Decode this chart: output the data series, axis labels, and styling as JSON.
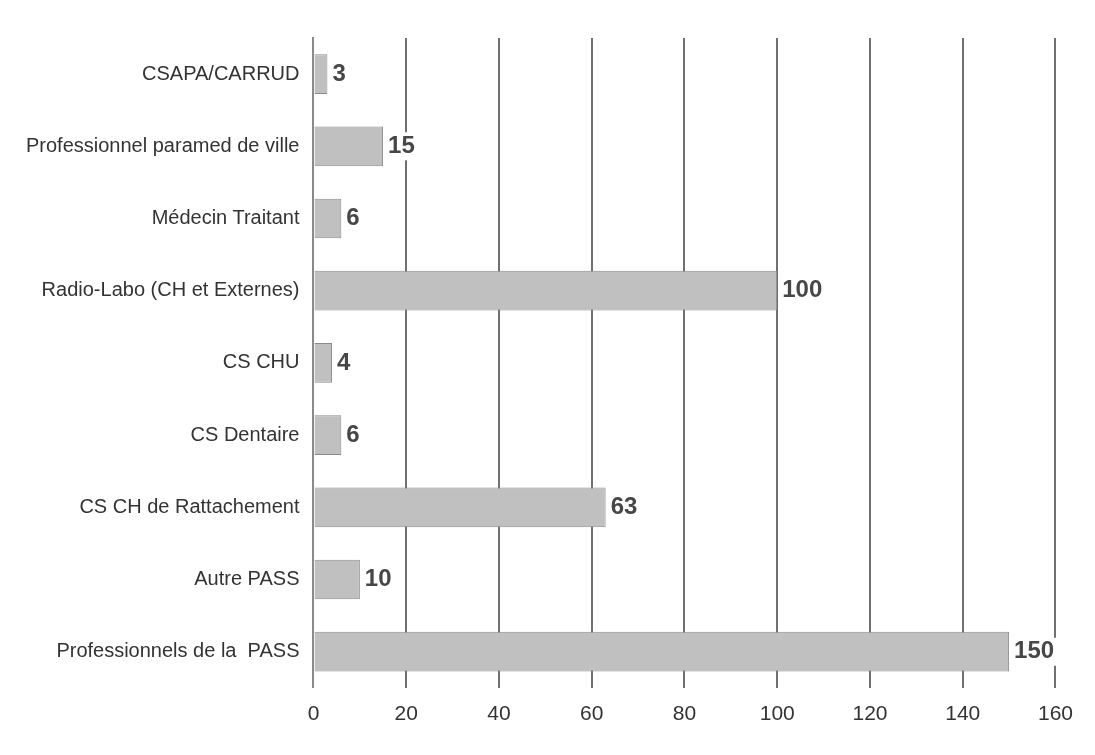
{
  "chart_data": {
    "type": "bar",
    "orientation": "horizontal",
    "categories": [
      "CSAPA/CARRUD",
      "Professionnel paramed de ville",
      "Médecin Traitant",
      "Radio-Labo (CH et Externes)",
      "CS CHU",
      "CS Dentaire",
      "CS CH de Rattachement",
      "Autre PASS",
      "Professionnels de la  PASS"
    ],
    "values": [
      3,
      15,
      6,
      100,
      4,
      6,
      63,
      10,
      150
    ],
    "color": "#c0c0c0",
    "xlim": [
      0,
      160
    ],
    "xticks": [
      0,
      20,
      40,
      60,
      80,
      100,
      120,
      140,
      160
    ],
    "grid": "x",
    "data_labels": true
  }
}
